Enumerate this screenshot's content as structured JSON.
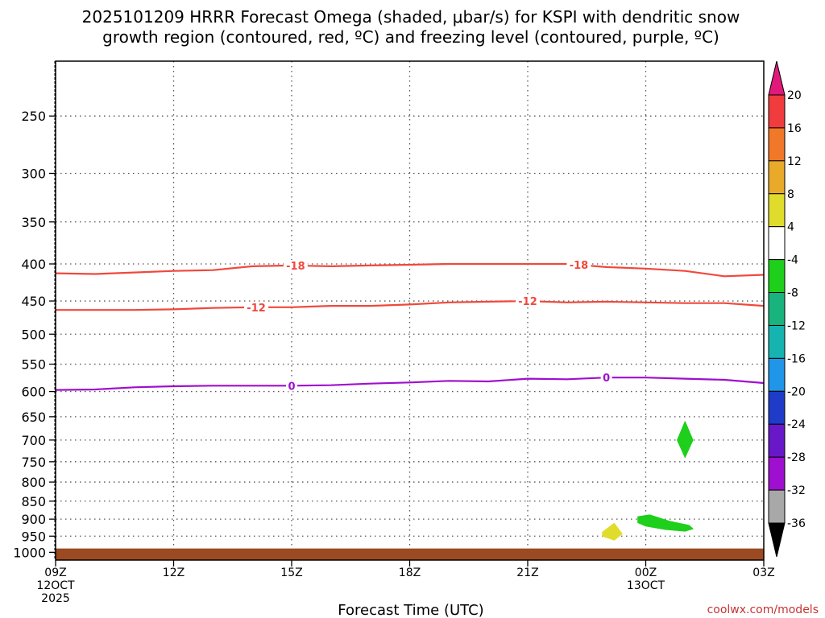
{
  "title": {
    "line1": "2025101209 HRRR Forecast Omega (shaded, μbar/s) for KSPI with dendritic snow",
    "line2": "growth region (contoured, red, ºC) and freezing level (contoured, purple, ºC)"
  },
  "credit": "coolwx.com/models",
  "chart_data": {
    "type": "time-height",
    "xlabel": "Forecast Time (UTC)",
    "x_ticks": [
      {
        "hour": 0,
        "label": "09Z",
        "sub1": "12OCT",
        "sub2": "2025"
      },
      {
        "hour": 3,
        "label": "12Z"
      },
      {
        "hour": 6,
        "label": "15Z"
      },
      {
        "hour": 9,
        "label": "18Z"
      },
      {
        "hour": 12,
        "label": "21Z"
      },
      {
        "hour": 15,
        "label": "00Z",
        "sub1": "13OCT"
      },
      {
        "hour": 18,
        "label": "03Z"
      }
    ],
    "xlim_hours": [
      0,
      18
    ],
    "y_scale": "log",
    "ylim_hPa": [
      1025,
      210
    ],
    "y_ticks": [
      250,
      300,
      350,
      400,
      450,
      500,
      550,
      600,
      650,
      700,
      750,
      800,
      850,
      900,
      950,
      1000
    ],
    "grid": true,
    "contours": [
      {
        "label": "-18",
        "color": "#f0483c",
        "points": [
          [
            0,
            412
          ],
          [
            1,
            413
          ],
          [
            2,
            411
          ],
          [
            3,
            409
          ],
          [
            4,
            408
          ],
          [
            5,
            403
          ],
          [
            6,
            402
          ],
          [
            7,
            403
          ],
          [
            8,
            402
          ],
          [
            9,
            401
          ],
          [
            10,
            400
          ],
          [
            11,
            400
          ],
          [
            12,
            400
          ],
          [
            13,
            400
          ],
          [
            14,
            404
          ],
          [
            15,
            406
          ],
          [
            16,
            409
          ],
          [
            17,
            416
          ],
          [
            18,
            414
          ]
        ],
        "label_hours": [
          6.1,
          13.3
        ]
      },
      {
        "label": "-12",
        "color": "#f0483c",
        "points": [
          [
            0,
            463
          ],
          [
            1,
            463
          ],
          [
            2,
            463
          ],
          [
            3,
            462
          ],
          [
            4,
            460
          ],
          [
            5,
            459
          ],
          [
            6,
            459
          ],
          [
            7,
            457
          ],
          [
            8,
            457
          ],
          [
            9,
            455
          ],
          [
            10,
            452
          ],
          [
            11,
            451
          ],
          [
            12,
            450
          ],
          [
            13,
            452
          ],
          [
            14,
            451
          ],
          [
            15,
            452
          ],
          [
            16,
            453
          ],
          [
            17,
            453
          ],
          [
            18,
            457
          ]
        ],
        "label_hours": [
          5.1,
          12.0
        ]
      },
      {
        "label": "0",
        "color": "#9f0fcf",
        "points": [
          [
            0,
            597
          ],
          [
            1,
            596
          ],
          [
            2,
            592
          ],
          [
            3,
            590
          ],
          [
            4,
            589
          ],
          [
            5,
            589
          ],
          [
            6,
            589
          ],
          [
            7,
            588
          ],
          [
            8,
            585
          ],
          [
            9,
            583
          ],
          [
            10,
            580
          ],
          [
            11,
            581
          ],
          [
            12,
            576
          ],
          [
            13,
            577
          ],
          [
            14,
            574
          ],
          [
            15,
            574
          ],
          [
            16,
            576
          ],
          [
            17,
            578
          ],
          [
            18,
            584
          ]
        ],
        "label_hours": [
          6.0,
          14.0
        ]
      }
    ],
    "omega_regions": [
      {
        "level": 4,
        "color": "#e0dc2c",
        "points": [
          [
            13.9,
            938
          ],
          [
            14.2,
            912
          ],
          [
            14.4,
            943
          ],
          [
            14.2,
            962
          ],
          [
            13.9,
            950
          ]
        ]
      },
      {
        "level": -4,
        "color": "#1ecf1c",
        "points": [
          [
            14.8,
            893
          ],
          [
            15.1,
            888
          ],
          [
            15.6,
            906
          ],
          [
            16.1,
            918
          ],
          [
            16.2,
            928
          ],
          [
            16.0,
            935
          ],
          [
            15.5,
            930
          ],
          [
            15.0,
            920
          ],
          [
            14.8,
            910
          ]
        ]
      },
      {
        "level": -4,
        "color": "#1ecf1c",
        "points": [
          [
            16.0,
            660
          ],
          [
            16.2,
            700
          ],
          [
            16.0,
            740
          ],
          [
            15.8,
            700
          ]
        ]
      }
    ],
    "ground": {
      "color": "#9b4a22",
      "top_hPa": 988,
      "bottom_hPa": 1025
    },
    "colorbar": {
      "levels": [
        20,
        16,
        12,
        8,
        4,
        -4,
        -8,
        -12,
        -16,
        -20,
        -24,
        -28,
        -32,
        -36
      ],
      "colors": [
        "#e8376f",
        "#f03c3c",
        "#f07828",
        "#e8aa28",
        "#e0dc2c",
        "#ffffff",
        "#1ecf1c",
        "#19b47e",
        "#16b4b0",
        "#1f96e8",
        "#1e3cc8",
        "#6818c8",
        "#9f0fcf",
        "#a8a8a8",
        "#000000"
      ],
      "top_arrow_color": "#e0197b",
      "bottom_arrow_color": "#000000"
    }
  }
}
